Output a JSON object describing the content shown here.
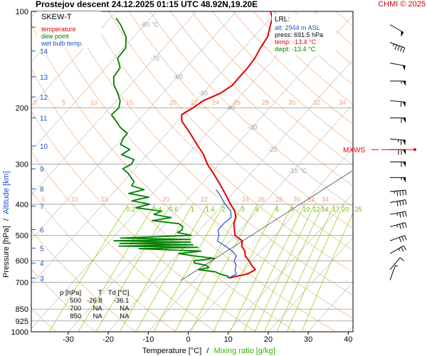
{
  "header": {
    "title": "Prostejov   descent   24.12.2025 01:15 UTC  48.92N,19.20E",
    "brand": "CHMI © 2025"
  },
  "legend": {
    "title": "SKEW-T",
    "items": [
      {
        "label": "temperature",
        "color": "#e00000"
      },
      {
        "label": "dew point",
        "color": "#008000"
      },
      {
        "label": "wet bulb temp.",
        "color": "#1e50c8"
      }
    ]
  },
  "lrl": {
    "title": "LRL:",
    "alt": "alt: 2944 m ASL",
    "press": "press: 691.5 hPa",
    "temp": "temp: -13.4 °C",
    "dwpt": "dwpt: -13.4 °C"
  },
  "summary_table": {
    "headers": [
      "p [hPa]",
      "T",
      "Td [°C]"
    ],
    "rows": [
      [
        "500",
        "-26.8",
        "-36.1"
      ],
      [
        "700",
        "NA",
        "NA"
      ],
      [
        "850",
        "NA",
        "NA"
      ]
    ]
  },
  "maxws_label": "MXWS",
  "colors": {
    "temperature": "#e00000",
    "dewpoint": "#008000",
    "wetbulb": "#1e50c8",
    "isotherm": "#c8c8c8",
    "dry_adiabat": "#f5b88a",
    "mixing_ratio": "#9ad21e",
    "altitude": "#1e50c8",
    "brand": "#cc0000"
  },
  "chart_data": {
    "type": "skew-t",
    "xlabel": "Temperature [°C]",
    "xlabel_sep": "/",
    "xlabel2": "Mixing ratio [g/kg]",
    "ylabel": "Pressure [hPa]",
    "ylabel_sep": "/",
    "ylabel2": "Altitude [km]",
    "pressure_ticks": [
      100,
      200,
      300,
      400,
      500,
      600,
      700,
      850,
      925,
      1000
    ],
    "temperature_ticks": [
      -30,
      -20,
      -10,
      0,
      10,
      20,
      30,
      40
    ],
    "altitude_ticks": [
      {
        "km": 3,
        "p": 680
      },
      {
        "km": 4,
        "p": 610
      },
      {
        "km": 5,
        "p": 548
      },
      {
        "km": 6,
        "p": 480
      },
      {
        "km": 7,
        "p": 405
      },
      {
        "km": 8,
        "p": 358
      },
      {
        "km": 9,
        "p": 310
      },
      {
        "km": 10,
        "p": 263
      },
      {
        "km": 11,
        "p": 215
      },
      {
        "km": 12,
        "p": 185
      },
      {
        "km": 13,
        "p": 160
      },
      {
        "km": 14,
        "p": 133
      },
      {
        "km": 15,
        "p": 112
      }
    ],
    "isotherm_labels": [
      {
        "t": -80,
        "p": 110,
        "text": "-80 °C"
      },
      {
        "t": -70,
        "p": 140,
        "text": "-70"
      },
      {
        "t": -60,
        "p": 160,
        "text": "-60"
      },
      {
        "t": -50,
        "p": 180,
        "text": "-50"
      },
      {
        "t": -40,
        "p": 200,
        "text": "-40"
      },
      {
        "t": -30,
        "p": 230,
        "text": "-30"
      },
      {
        "t": -20,
        "p": 270,
        "text": "-20"
      },
      {
        "t": -10,
        "p": 315,
        "text": "-10 °C"
      }
    ],
    "mixing_ratio_labels_upper": [
      "0",
      "5",
      "10",
      "15",
      "20",
      "22",
      "24",
      "26",
      "28",
      "30",
      "32",
      "34"
    ],
    "mixing_ratio_labels_mid": [
      "5",
      "10",
      "15",
      "20",
      "22",
      "24",
      "26",
      "28",
      "30",
      "32",
      "34"
    ],
    "mixing_ratio_labels_green": [
      "0.2",
      "0.4",
      "0.6",
      "1",
      "1.4",
      "2",
      "3",
      "4",
      "6",
      "8",
      "10",
      "12",
      "14",
      "17",
      "20",
      "25"
    ],
    "temperature_profile": [
      [
        680,
        -1.8
      ],
      [
        672,
        -0.7
      ],
      [
        660,
        1.8
      ],
      [
        640,
        2.8
      ],
      [
        620,
        0.9
      ],
      [
        600,
        -0.8
      ],
      [
        580,
        -2.8
      ],
      [
        560,
        -4.0
      ],
      [
        540,
        -5.9
      ],
      [
        520,
        -7.0
      ],
      [
        500,
        -10.0
      ],
      [
        480,
        -11.4
      ],
      [
        460,
        -12.9
      ],
      [
        440,
        -13.8
      ],
      [
        420,
        -15.5
      ],
      [
        400,
        -18.1
      ],
      [
        380,
        -20.6
      ],
      [
        360,
        -23.3
      ],
      [
        340,
        -26.2
      ],
      [
        320,
        -29.4
      ],
      [
        300,
        -32.9
      ],
      [
        280,
        -36.0
      ],
      [
        260,
        -40.0
      ],
      [
        240,
        -44.2
      ],
      [
        220,
        -49.0
      ],
      [
        210,
        -50.5
      ],
      [
        200,
        -49.2
      ],
      [
        190,
        -48.2
      ],
      [
        180,
        -45.6
      ],
      [
        170,
        -44.4
      ],
      [
        160,
        -44.5
      ],
      [
        150,
        -44.5
      ],
      [
        140,
        -44.9
      ],
      [
        130,
        -45.8
      ],
      [
        120,
        -46.5
      ],
      [
        110,
        -48.5
      ],
      [
        105,
        -49.5
      ],
      [
        100,
        -51.5
      ]
    ],
    "dewpoint_profile": [
      [
        680,
        -2.2
      ],
      [
        672,
        -2.4
      ],
      [
        660,
        -5.1
      ],
      [
        650,
        -6.7
      ],
      [
        640,
        -11.3
      ],
      [
        630,
        -9.3
      ],
      [
        620,
        -10.5
      ],
      [
        610,
        -14.0
      ],
      [
        600,
        -14.5
      ],
      [
        590,
        -10.0
      ],
      [
        580,
        -15.5
      ],
      [
        570,
        -20.0
      ],
      [
        560,
        -15.0
      ],
      [
        550,
        -31.0
      ],
      [
        545,
        -16.6
      ],
      [
        540,
        -36.6
      ],
      [
        535,
        -18.4
      ],
      [
        530,
        -37.0
      ],
      [
        525,
        -19.6
      ],
      [
        520,
        -39.0
      ],
      [
        515,
        -20.3
      ],
      [
        510,
        -38.0
      ],
      [
        500,
        -20.9
      ],
      [
        490,
        -25.0
      ],
      [
        480,
        -24.5
      ],
      [
        470,
        -25.0
      ],
      [
        460,
        -26.6
      ],
      [
        450,
        -34.0
      ],
      [
        440,
        -30.0
      ],
      [
        430,
        -35.0
      ],
      [
        420,
        -33.8
      ],
      [
        410,
        -41.0
      ],
      [
        400,
        -38.3
      ],
      [
        390,
        -43.5
      ],
      [
        380,
        -40.2
      ],
      [
        370,
        -46.0
      ],
      [
        360,
        -43.0
      ],
      [
        350,
        -47.0
      ],
      [
        340,
        -47.3
      ],
      [
        330,
        -49.0
      ],
      [
        320,
        -50.7
      ],
      [
        310,
        -53.0
      ],
      [
        300,
        -51.9
      ],
      [
        290,
        -52.3
      ],
      [
        280,
        -56.5
      ],
      [
        270,
        -55.6
      ],
      [
        260,
        -59.1
      ],
      [
        250,
        -59.7
      ],
      [
        240,
        -59.9
      ],
      [
        230,
        -63.0
      ],
      [
        220,
        -65.4
      ],
      [
        210,
        -68.0
      ],
      [
        200,
        -67.7
      ],
      [
        190,
        -69.0
      ],
      [
        180,
        -71.3
      ],
      [
        170,
        -74.0
      ],
      [
        160,
        -76.0
      ],
      [
        150,
        -76.4
      ],
      [
        140,
        -79.2
      ],
      [
        130,
        -79.5
      ],
      [
        120,
        -81.9
      ],
      [
        110,
        -86.0
      ],
      [
        105,
        -88.6
      ]
    ],
    "wetbulb_profile": [
      [
        680,
        -2.0
      ],
      [
        660,
        -1.0
      ],
      [
        640,
        -2.3
      ],
      [
        620,
        -3.0
      ],
      [
        600,
        -4.5
      ],
      [
        580,
        -5.0
      ],
      [
        560,
        -7.2
      ],
      [
        540,
        -10.0
      ],
      [
        520,
        -13.2
      ],
      [
        500,
        -14.0
      ],
      [
        480,
        -15.5
      ],
      [
        460,
        -15.5
      ],
      [
        440,
        -15.0
      ],
      [
        420,
        -16.5
      ],
      [
        400,
        -19.5
      ],
      [
        380,
        -22.0
      ],
      [
        360,
        -25.0
      ]
    ],
    "wind_barbs": [
      {
        "p": 110,
        "dir": 300,
        "kt": 50
      },
      {
        "p": 125,
        "dir": 290,
        "kt": 45
      },
      {
        "p": 145,
        "dir": 280,
        "kt": 50
      },
      {
        "p": 165,
        "dir": 270,
        "kt": 55
      },
      {
        "p": 190,
        "dir": 275,
        "kt": 60
      },
      {
        "p": 215,
        "dir": 270,
        "kt": 60
      },
      {
        "p": 250,
        "dir": 275,
        "kt": 65
      },
      {
        "p": 270,
        "dir": 270,
        "kt": 70
      },
      {
        "p": 295,
        "dir": 270,
        "kt": 60
      },
      {
        "p": 330,
        "dir": 270,
        "kt": 55
      },
      {
        "p": 365,
        "dir": 265,
        "kt": 45
      },
      {
        "p": 395,
        "dir": 260,
        "kt": 40
      },
      {
        "p": 430,
        "dir": 260,
        "kt": 35
      },
      {
        "p": 470,
        "dir": 255,
        "kt": 35
      },
      {
        "p": 520,
        "dir": 250,
        "kt": 30
      },
      {
        "p": 570,
        "dir": 240,
        "kt": 25
      },
      {
        "p": 640,
        "dir": 220,
        "kt": 10
      },
      {
        "p": 690,
        "dir": 200,
        "kt": 5
      }
    ],
    "max_wind_level_p": 270
  }
}
